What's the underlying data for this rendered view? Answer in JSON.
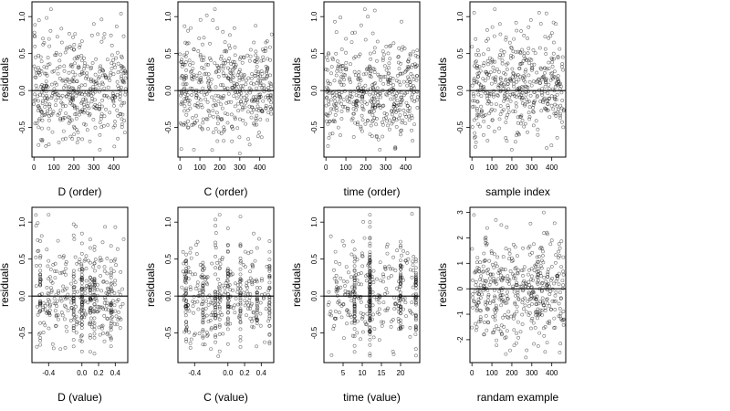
{
  "figure": {
    "layout": "2 rows x 4 panels",
    "point_style": "open circle",
    "point_color": "#000000",
    "reference_line_color": "#000000",
    "background": "#ffffff"
  },
  "chart_data": [
    {
      "type": "scatter",
      "title": "",
      "xlabel": "D (order)",
      "ylabel": "residuals",
      "xlim": [
        -10,
        470
      ],
      "ylim": [
        -0.9,
        1.2
      ],
      "xticks": [
        0,
        100,
        200,
        300,
        400
      ],
      "xtick_labels": [
        "0",
        "100",
        "200",
        "300",
        "400"
      ],
      "yticks": [
        -0.5,
        0.0,
        0.5,
        1.0
      ],
      "ytick_labels": [
        "-0.5",
        "0.0",
        "0.5",
        "1.0"
      ],
      "hline": 0,
      "grid": false,
      "legend": "none",
      "data_pattern": {
        "kind": "index",
        "n": 460,
        "sd": 0.32,
        "skew": 0.35,
        "seed": 11
      },
      "sample_points": [
        [
          25,
          0.95
        ],
        [
          85,
          1.1
        ],
        [
          200,
          0.55
        ],
        [
          300,
          0.9
        ],
        [
          420,
          -0.65
        ],
        [
          60,
          -0.75
        ],
        [
          330,
          -0.8
        ],
        [
          140,
          0.65
        ],
        [
          250,
          -0.3
        ],
        [
          390,
          0.3
        ]
      ]
    },
    {
      "type": "scatter",
      "title": "",
      "xlabel": "C (order)",
      "ylabel": "residuals",
      "xlim": [
        -10,
        470
      ],
      "ylim": [
        -0.9,
        1.2
      ],
      "xticks": [
        0,
        100,
        200,
        300,
        400
      ],
      "xtick_labels": [
        "0",
        "100",
        "200",
        "300",
        "400"
      ],
      "yticks": [
        -0.5,
        0.0,
        0.5,
        1.0
      ],
      "ytick_labels": [
        "-0.5",
        "0.0",
        "0.5",
        "1.0"
      ],
      "hline": 0,
      "grid": false,
      "legend": "none",
      "data_pattern": {
        "kind": "index",
        "n": 460,
        "sd": 0.32,
        "skew": 0.35,
        "seed": 23
      },
      "sample_points": [
        [
          175,
          1.1
        ],
        [
          165,
          0.95
        ],
        [
          250,
          0.75
        ],
        [
          430,
          0.65
        ],
        [
          70,
          -0.8
        ],
        [
          300,
          -0.85
        ],
        [
          120,
          0.45
        ],
        [
          360,
          -0.3
        ],
        [
          30,
          0.2
        ],
        [
          220,
          -0.55
        ]
      ]
    },
    {
      "type": "scatter",
      "title": "",
      "xlabel": "time (order)",
      "ylabel": "residuals",
      "xlim": [
        -10,
        470
      ],
      "ylim": [
        -0.9,
        1.2
      ],
      "xticks": [
        0,
        100,
        200,
        300,
        400
      ],
      "xtick_labels": [
        "0",
        "100",
        "200",
        "300",
        "400"
      ],
      "yticks": [
        -0.5,
        0.0,
        0.5,
        1.0
      ],
      "ytick_labels": [
        "-0.5",
        "0.0",
        "0.5",
        "1.0"
      ],
      "hline": 0,
      "grid": false,
      "legend": "none",
      "data_pattern": {
        "kind": "index",
        "n": 460,
        "sd": 0.32,
        "skew": 0.35,
        "seed": 37
      },
      "sample_points": [
        [
          195,
          1.1
        ],
        [
          210,
          1.0
        ],
        [
          100,
          0.7
        ],
        [
          380,
          0.55
        ],
        [
          10,
          -0.75
        ],
        [
          270,
          -0.8
        ],
        [
          60,
          0.3
        ],
        [
          320,
          -0.4
        ],
        [
          150,
          -0.2
        ],
        [
          440,
          0.15
        ]
      ]
    },
    {
      "type": "scatter",
      "title": "",
      "xlabel": "sample index",
      "ylabel": "residuals",
      "xlim": [
        -10,
        470
      ],
      "ylim": [
        -0.9,
        1.2
      ],
      "xticks": [
        0,
        100,
        200,
        300,
        400
      ],
      "xtick_labels": [
        "0",
        "100",
        "200",
        "300",
        "400"
      ],
      "yticks": [
        -0.5,
        0.0,
        0.5,
        1.0
      ],
      "ytick_labels": [
        "-0.5",
        "0.0",
        "0.5",
        "1.0"
      ],
      "hline": 0,
      "grid": false,
      "legend": "none",
      "data_pattern": {
        "kind": "index",
        "n": 460,
        "sd": 0.32,
        "skew": 0.35,
        "seed": 53
      },
      "sample_points": [
        [
          115,
          1.1
        ],
        [
          140,
          0.9
        ],
        [
          410,
          0.65
        ],
        [
          20,
          -0.7
        ],
        [
          200,
          -0.8
        ],
        [
          330,
          -0.6
        ],
        [
          80,
          0.4
        ],
        [
          260,
          0.2
        ],
        [
          370,
          -0.25
        ],
        [
          170,
          -0.1
        ]
      ]
    },
    {
      "type": "scatter",
      "title": "",
      "xlabel": "D (value)",
      "ylabel": "residuals",
      "xlim": [
        -0.6,
        0.55
      ],
      "ylim": [
        -0.9,
        1.2
      ],
      "xticks": [
        -0.4,
        0.0,
        0.2,
        0.4
      ],
      "xtick_labels": [
        "-0.4",
        "0.0",
        "0.2",
        "0.4"
      ],
      "yticks": [
        -0.5,
        0.0,
        0.5,
        1.0
      ],
      "ytick_labels": [
        "-0.5",
        "0.0",
        "0.5",
        "1.0"
      ],
      "hline": 0,
      "grid": false,
      "legend": "none",
      "data_pattern": {
        "kind": "value",
        "n": 460,
        "sd": 0.32,
        "skew": 0.35,
        "seed": 71,
        "column_prob": 0.4,
        "columns": [
          -0.1,
          0.0,
          0.1,
          0.15,
          -0.5,
          0.35
        ]
      },
      "sample_points": [
        [
          -0.55,
          0.95
        ],
        [
          -0.4,
          1.1
        ],
        [
          0.1,
          0.65
        ],
        [
          0.4,
          0.5
        ],
        [
          -0.35,
          -0.65
        ],
        [
          0.0,
          -0.75
        ],
        [
          -0.2,
          -0.7
        ],
        [
          0.15,
          0.1
        ],
        [
          -0.1,
          0.3
        ],
        [
          0.25,
          -0.4
        ]
      ]
    },
    {
      "type": "scatter",
      "title": "",
      "xlabel": "C (value)",
      "ylabel": "residuals",
      "xlim": [
        -0.6,
        0.55
      ],
      "ylim": [
        -0.9,
        1.2
      ],
      "xticks": [
        -0.4,
        0.0,
        0.2,
        0.4
      ],
      "xtick_labels": [
        "-0.4",
        "0.0",
        "0.2",
        "0.4"
      ],
      "yticks": [
        -0.5,
        0.0,
        0.5,
        1.0
      ],
      "ytick_labels": [
        "-0.5",
        "0.0",
        "0.5",
        "1.0"
      ],
      "hline": 0,
      "grid": false,
      "legend": "none",
      "data_pattern": {
        "kind": "value",
        "n": 460,
        "sd": 0.32,
        "skew": 0.35,
        "seed": 89,
        "column_prob": 0.45,
        "columns": [
          -0.5,
          -0.3,
          -0.15,
          -0.1,
          0.0,
          0.15,
          0.35,
          0.5
        ]
      },
      "sample_points": [
        [
          -0.1,
          1.1
        ],
        [
          -0.15,
          0.95
        ],
        [
          0.35,
          0.65
        ],
        [
          0.5,
          0.6
        ],
        [
          -0.45,
          -0.7
        ],
        [
          0.15,
          -0.6
        ],
        [
          -0.3,
          0.4
        ],
        [
          0.0,
          -0.3
        ],
        [
          0.25,
          0.2
        ],
        [
          -0.2,
          -0.45
        ]
      ]
    },
    {
      "type": "scatter",
      "title": "",
      "xlabel": "time (value)",
      "ylabel": "residuals",
      "xlim": [
        0,
        25
      ],
      "ylim": [
        -0.9,
        1.2
      ],
      "xticks": [
        5,
        10,
        15,
        20
      ],
      "xtick_labels": [
        "5",
        "10",
        "15",
        "20"
      ],
      "yticks": [
        -0.5,
        0.0,
        0.5,
        1.0
      ],
      "ytick_labels": [
        "-0.5",
        "0.0",
        "0.5",
        "1.0"
      ],
      "hline": 0,
      "grid": false,
      "legend": "none",
      "data_pattern": {
        "kind": "value",
        "n": 460,
        "sd": 0.32,
        "skew": 0.35,
        "seed": 97,
        "column_prob": 0.5,
        "columns": [
          12,
          12,
          24,
          8,
          20
        ]
      },
      "sample_points": [
        [
          12,
          1.1
        ],
        [
          12,
          1.0
        ],
        [
          3,
          0.6
        ],
        [
          22,
          0.5
        ],
        [
          2,
          -0.8
        ],
        [
          18,
          -0.75
        ],
        [
          9,
          0.3
        ],
        [
          15,
          -0.35
        ],
        [
          6,
          -0.2
        ],
        [
          24,
          0.25
        ]
      ]
    },
    {
      "type": "scatter",
      "title": "",
      "xlabel": "randam example",
      "ylabel": "residuals",
      "xlim": [
        -10,
        470
      ],
      "ylim": [
        -2.9,
        3.2
      ],
      "xticks": [
        0,
        100,
        200,
        300,
        400
      ],
      "xtick_labels": [
        "0",
        "100",
        "200",
        "300",
        "400"
      ],
      "yticks": [
        -2,
        -1,
        0,
        1,
        2,
        3
      ],
      "ytick_labels": [
        "-2",
        "-1",
        "0",
        "1",
        "2",
        "3"
      ],
      "hline": 0,
      "grid": false,
      "legend": "none",
      "data_pattern": {
        "kind": "index",
        "n": 460,
        "sd": 1.0,
        "skew": 0.0,
        "seed": 131
      },
      "sample_points": [
        [
          10,
          2.9
        ],
        [
          360,
          3.0
        ],
        [
          270,
          -2.7
        ],
        [
          440,
          -2.5
        ],
        [
          120,
          2.7
        ],
        [
          60,
          -1.8
        ],
        [
          200,
          1.2
        ],
        [
          330,
          -0.8
        ],
        [
          160,
          -1.5
        ],
        [
          400,
          1.9
        ]
      ]
    }
  ]
}
